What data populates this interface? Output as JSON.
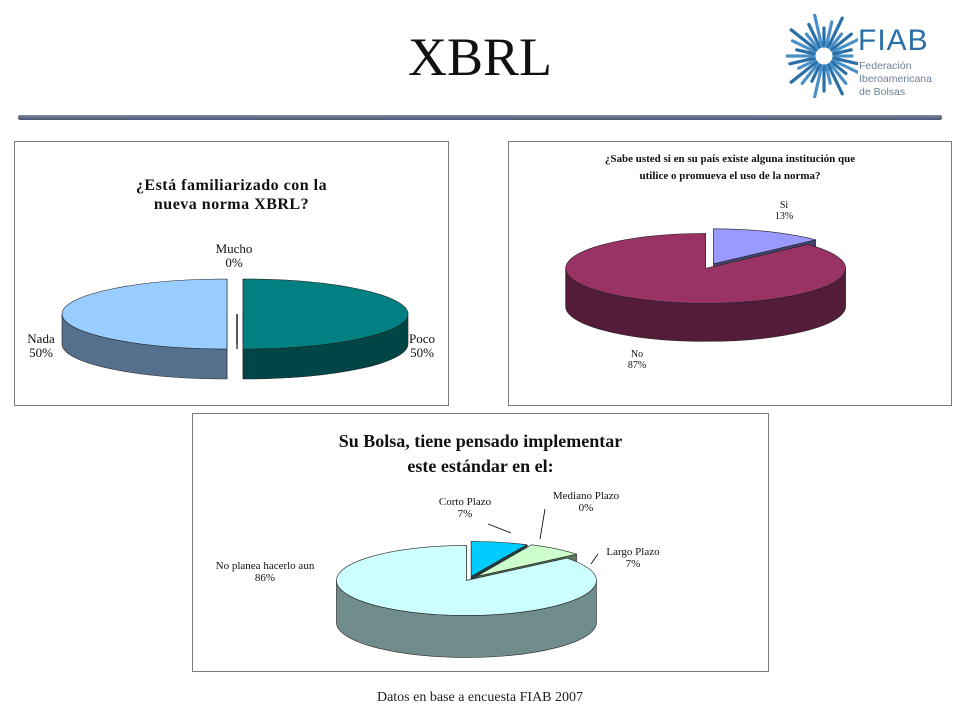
{
  "slide": {
    "title": "XBRL",
    "footer": "Datos en base a encuesta FIAB 2007"
  },
  "logo": {
    "name": "FIAB",
    "subtitle_lines": [
      "Federación",
      "Iberoamericana",
      "de Bolsas"
    ],
    "color": "#2a6fa8"
  },
  "chart_data": [
    {
      "type": "pie",
      "style": "3d-exploded",
      "title_lines": [
        "¿Está familiarizado con la",
        "nueva norma XBRL?"
      ],
      "slices": [
        {
          "label": "Poco",
          "value": 50,
          "pct_label": "50%",
          "color": "#008080"
        },
        {
          "label": "Mucho",
          "value": 0,
          "pct_label": "0%",
          "color": "#99ccff"
        },
        {
          "label": "Nada",
          "value": 50,
          "pct_label": "50%",
          "color": "#99ccff"
        }
      ]
    },
    {
      "type": "pie",
      "style": "3d-exploded",
      "title_lines": [
        "¿Sabe usted si en su país existe alguna institución que",
        "utilice o promueva el uso de la norma?"
      ],
      "slices": [
        {
          "label": "Si",
          "value": 13,
          "pct_label": "13%",
          "color": "#9999ff"
        },
        {
          "label": "No",
          "value": 87,
          "pct_label": "87%",
          "color": "#993366"
        }
      ]
    },
    {
      "type": "pie",
      "style": "3d-exploded",
      "title_lines": [
        "Su Bolsa, tiene pensado implementar",
        "este estándar en el:"
      ],
      "slices": [
        {
          "label": "Corto Plazo",
          "value": 7,
          "pct_label": "7%",
          "color": "#00ccff"
        },
        {
          "label": "Mediano Plazo",
          "value": 0,
          "pct_label": "0%",
          "color": "#003366"
        },
        {
          "label": "Largo Plazo",
          "value": 7,
          "pct_label": "7%",
          "color": "#ccffcc"
        },
        {
          "label": "No planea hacerlo aun",
          "value": 86,
          "pct_label": "86%",
          "color": "#ccffff"
        }
      ]
    }
  ]
}
